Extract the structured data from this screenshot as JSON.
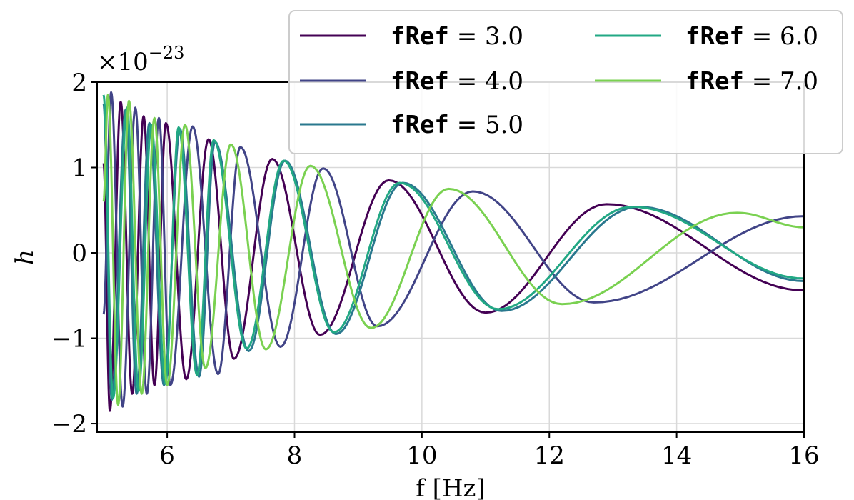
{
  "chart_data": {
    "type": "line",
    "xlabel": "f [Hz]",
    "ylabel": "h",
    "scale_label": "×10",
    "scale_exponent": "−23",
    "xlim": [
      4.9,
      16
    ],
    "ylim": [
      -2.1,
      2.0
    ],
    "xticks": [
      {
        "value": 6,
        "label": "6"
      },
      {
        "value": 8,
        "label": "8"
      },
      {
        "value": 10,
        "label": "10"
      },
      {
        "value": 12,
        "label": "12"
      },
      {
        "value": 14,
        "label": "14"
      },
      {
        "value": 16,
        "label": "16"
      }
    ],
    "yticks": [
      {
        "value": 2,
        "label": "2"
      },
      {
        "value": 1,
        "label": "1"
      },
      {
        "value": 0,
        "label": "0"
      },
      {
        "value": -1,
        "label": "−1"
      },
      {
        "value": -2,
        "label": "−2"
      }
    ],
    "grid": true,
    "legend_position": "top-right",
    "legend_key": "fRef",
    "series": [
      {
        "name": "3.0",
        "color": "#440154",
        "peaks": [
          [
            5.0,
            1.05
          ],
          [
            5.1,
            -1.85
          ],
          [
            5.27,
            1.77
          ],
          [
            5.45,
            -1.65
          ],
          [
            5.63,
            1.6
          ],
          [
            5.8,
            -1.55
          ],
          [
            5.98,
            1.52
          ],
          [
            6.3,
            -1.48
          ],
          [
            6.65,
            1.33
          ],
          [
            7.05,
            -1.24
          ],
          [
            7.65,
            1.1
          ],
          [
            8.4,
            -0.96
          ],
          [
            9.48,
            0.85
          ],
          [
            11.0,
            -0.7
          ],
          [
            12.9,
            0.57
          ],
          [
            16.0,
            -0.44
          ]
        ]
      },
      {
        "name": "4.0",
        "color": "#414487",
        "peaks": [
          [
            5.0,
            -0.72
          ],
          [
            5.12,
            1.88
          ],
          [
            5.3,
            -1.8
          ],
          [
            5.5,
            1.7
          ],
          [
            5.68,
            -1.65
          ],
          [
            5.87,
            1.58
          ],
          [
            6.05,
            -1.55
          ],
          [
            6.4,
            1.48
          ],
          [
            6.8,
            -1.42
          ],
          [
            7.15,
            1.24
          ],
          [
            7.78,
            -1.1
          ],
          [
            8.45,
            0.99
          ],
          [
            9.3,
            -0.86
          ],
          [
            10.8,
            0.72
          ],
          [
            12.7,
            -0.58
          ],
          [
            16.0,
            0.43
          ]
        ]
      },
      {
        "name": "5.0",
        "color": "#2a788e",
        "peaks": [
          [
            5.0,
            1.75
          ],
          [
            5.13,
            -1.72
          ],
          [
            5.35,
            1.68
          ],
          [
            5.52,
            -1.65
          ],
          [
            5.72,
            1.52
          ],
          [
            5.95,
            -1.55
          ],
          [
            6.2,
            1.45
          ],
          [
            6.5,
            -1.45
          ],
          [
            6.75,
            1.3
          ],
          [
            7.28,
            -1.15
          ],
          [
            7.85,
            1.08
          ],
          [
            8.65,
            -0.95
          ],
          [
            9.7,
            0.82
          ],
          [
            11.25,
            -0.68
          ],
          [
            13.4,
            0.54
          ],
          [
            16.0,
            -0.33
          ]
        ]
      },
      {
        "name": "6.0",
        "color": "#22a884",
        "peaks": [
          [
            5.0,
            1.85
          ],
          [
            5.15,
            -1.7
          ],
          [
            5.37,
            1.7
          ],
          [
            5.55,
            -1.62
          ],
          [
            5.75,
            1.5
          ],
          [
            5.97,
            -1.53
          ],
          [
            6.18,
            1.47
          ],
          [
            6.47,
            -1.43
          ],
          [
            6.73,
            1.32
          ],
          [
            7.25,
            -1.12
          ],
          [
            7.83,
            1.08
          ],
          [
            8.62,
            -0.93
          ],
          [
            9.65,
            0.82
          ],
          [
            11.2,
            -0.66
          ],
          [
            13.3,
            0.54
          ],
          [
            16.0,
            -0.3
          ]
        ]
      },
      {
        "name": "7.0",
        "color": "#7ad151",
        "peaks": [
          [
            5.0,
            0.6
          ],
          [
            5.07,
            1.85
          ],
          [
            5.23,
            -1.78
          ],
          [
            5.4,
            1.78
          ],
          [
            5.6,
            -1.65
          ],
          [
            5.8,
            1.58
          ],
          [
            6.0,
            -1.55
          ],
          [
            6.28,
            1.5
          ],
          [
            6.6,
            -1.35
          ],
          [
            7.0,
            1.27
          ],
          [
            7.55,
            -1.13
          ],
          [
            8.25,
            1.02
          ],
          [
            9.2,
            -0.88
          ],
          [
            10.42,
            0.75
          ],
          [
            12.2,
            -0.6
          ],
          [
            14.95,
            0.47
          ],
          [
            16.0,
            0.3
          ]
        ]
      }
    ]
  }
}
